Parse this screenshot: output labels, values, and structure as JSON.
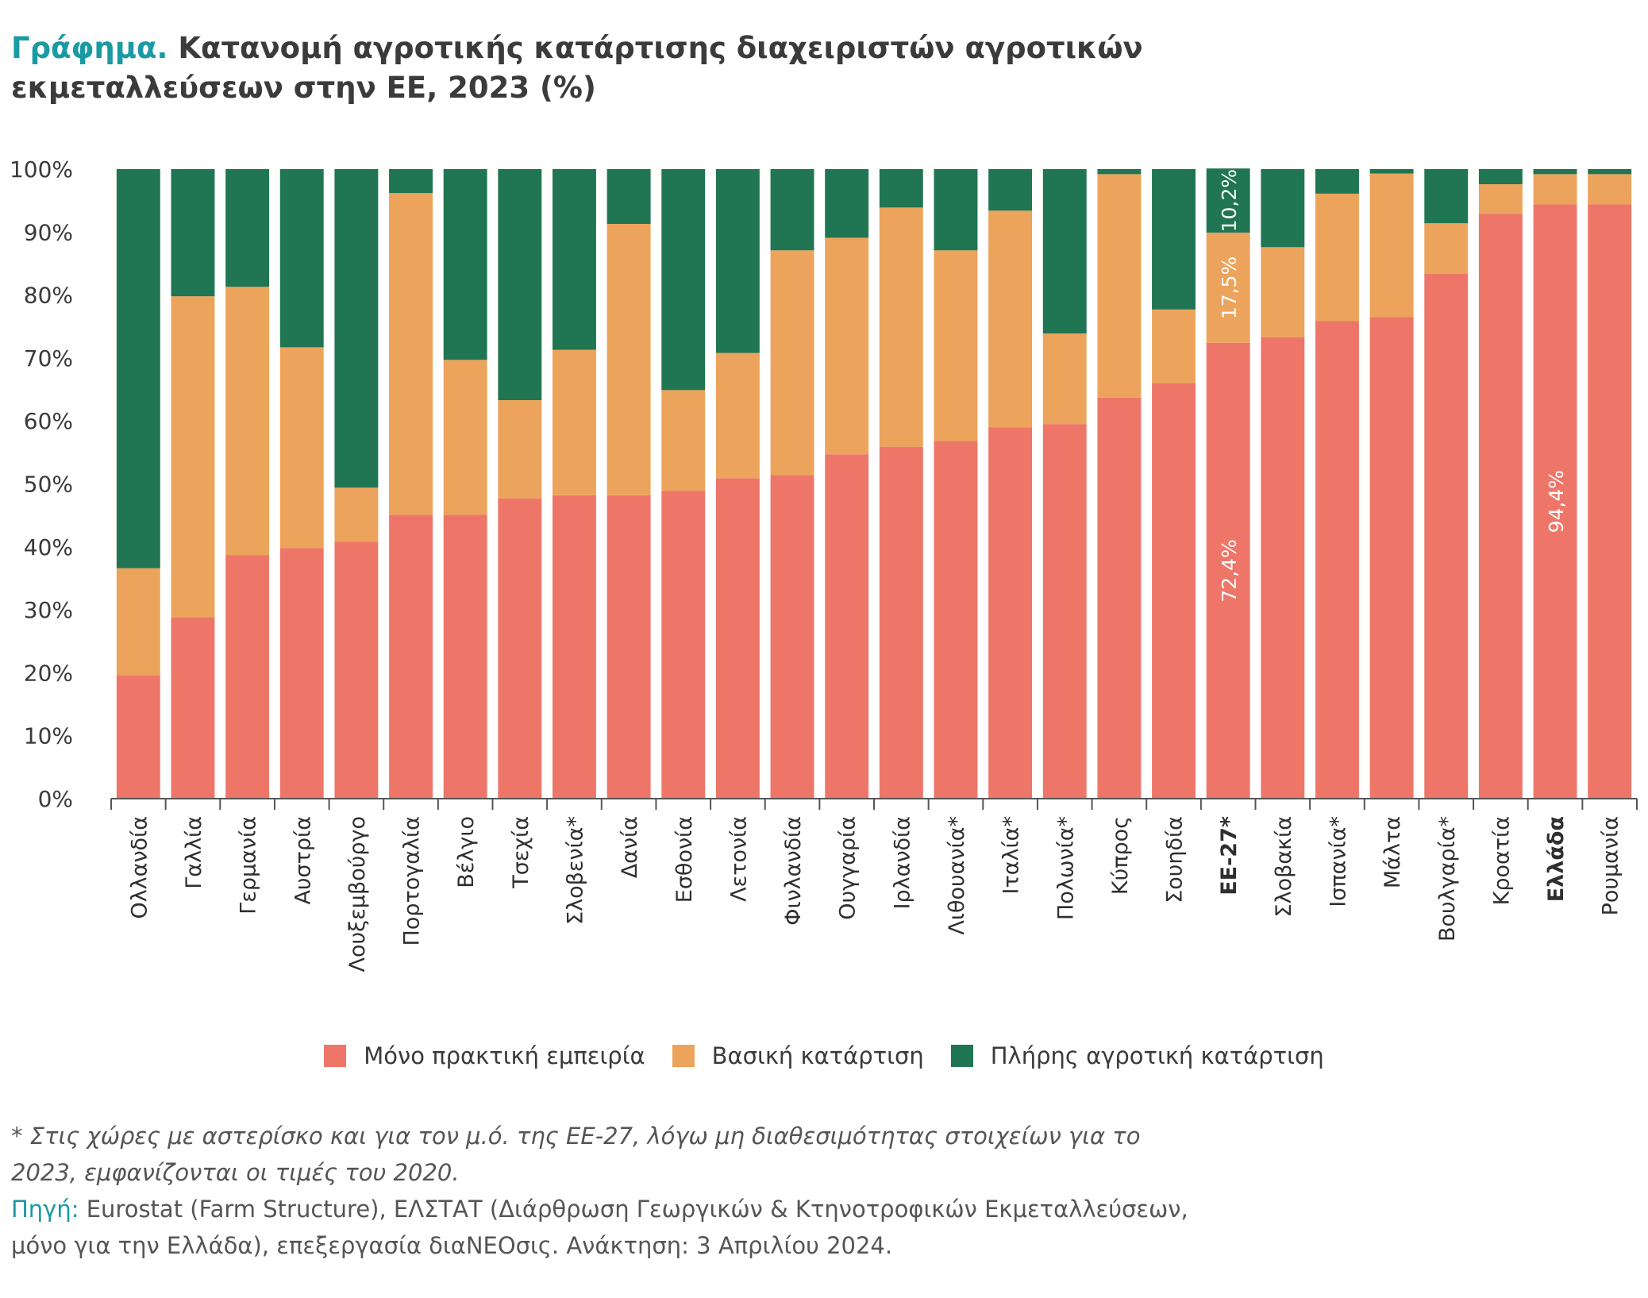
{
  "title": {
    "prefix": "Γράφημα.",
    "text": " Κατανομή αγροτικής κατάρτισης διαχειριστών αγροτικών εκμεταλλεύσεων στην ΕΕ, 2023 (%)"
  },
  "legend": {
    "items": [
      {
        "label": "Μόνο πρακτική εμπειρία",
        "color": "#ee7669"
      },
      {
        "label": "Βασική κατάρτιση",
        "color": "#eca35b"
      },
      {
        "label": "Πλήρης αγροτική κατάρτιση",
        "color": "#207552"
      }
    ]
  },
  "footnote": {
    "note": "* Στις χώρες με αστερίσκο και για τον μ.ό. της ΕΕ-27, λόγω μη διαθεσιμότητας στοιχείων για το 2023, εμφανίζονται οι τιμές του 2020.",
    "source_label": "Πηγή:",
    "source_text": " Eurostat (Farm Structure), ΕΛΣΤΑΤ (Διάρθρωση Γεωργικών & Κτηνοτροφικών Εκμεταλλεύσεων, μόνο για την Ελλάδα), επεξεργασία διαΝΕΟσις. Ανάκτηση: 3 Απριλίου 2024."
  },
  "chart_data": {
    "type": "bar",
    "stacked": true,
    "ylim": [
      0,
      100
    ],
    "y_ticks": [
      "0%",
      "10%",
      "20%",
      "30%",
      "40%",
      "50%",
      "60%",
      "70%",
      "80%",
      "90%",
      "100%"
    ],
    "categories": [
      "Ολλανδία",
      "Γαλλία",
      "Γερμανία",
      "Αυστρία",
      "Λουξεμβούργο",
      "Πορτογαλία",
      "Βέλγιο",
      "Τσεχία",
      "Σλοβενία*",
      "Δανία",
      "Εσθονία",
      "Λετονία",
      "Φινλανδία",
      "Ουγγαρία",
      "Ιρλανδία",
      "Λιθουανία*",
      "Ιταλία*",
      "Πολωνία*",
      "Κύπρος",
      "Σουηδία",
      "ΕΕ-27*",
      "Σλοβακία",
      "Ισπανία*",
      "Μάλτα",
      "Βουλγαρία*",
      "Κροατία",
      "Ελλάδα",
      "Ρουμανία"
    ],
    "bold_categories": [
      "ΕΕ-27*",
      "Ελλάδα"
    ],
    "series": [
      {
        "name": "Μόνο πρακτική εμπειρία",
        "color": "#ee7669",
        "values": [
          19.6,
          28.8,
          38.7,
          39.8,
          40.8,
          45.1,
          45.1,
          47.7,
          48.2,
          48.2,
          48.9,
          50.9,
          51.4,
          54.7,
          55.9,
          56.8,
          59.0,
          59.5,
          63.7,
          66.0,
          72.4,
          73.3,
          75.9,
          76.5,
          83.4,
          92.9,
          94.4,
          94.4
        ]
      },
      {
        "name": "Βασική κατάρτιση",
        "color": "#eca35b",
        "values": [
          17.0,
          51.0,
          42.6,
          31.9,
          8.6,
          51.1,
          24.6,
          15.6,
          23.1,
          43.1,
          16.0,
          19.9,
          35.7,
          34.4,
          38.0,
          30.3,
          34.4,
          14.4,
          35.5,
          11.7,
          17.5,
          14.3,
          20.2,
          22.8,
          8.0,
          4.7,
          4.8,
          4.8
        ]
      },
      {
        "name": "Πλήρης αγροτική κατάρτιση",
        "color": "#207552",
        "values": [
          63.4,
          20.2,
          18.7,
          28.3,
          50.6,
          3.8,
          30.3,
          36.7,
          28.7,
          8.7,
          35.1,
          29.2,
          12.9,
          10.9,
          6.1,
          12.9,
          6.6,
          26.1,
          0.8,
          22.3,
          10.2,
          12.4,
          3.9,
          0.7,
          8.6,
          2.4,
          0.8,
          0.8
        ]
      }
    ],
    "data_labels": [
      {
        "category": "ΕΕ-27*",
        "series": 0,
        "text": "72,4%"
      },
      {
        "category": "ΕΕ-27*",
        "series": 1,
        "text": "17,5%"
      },
      {
        "category": "ΕΕ-27*",
        "series": 2,
        "text": "10,2%"
      },
      {
        "category": "Ελλάδα",
        "series": 0,
        "text": "94,4%"
      }
    ]
  }
}
